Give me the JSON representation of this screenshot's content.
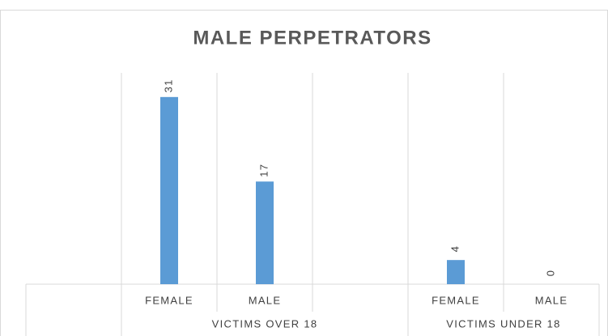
{
  "chart_data": {
    "type": "bar",
    "title": "MALE PERPETRATORS",
    "categories": [
      null,
      "FEMALE",
      "MALE",
      null,
      "FEMALE",
      "MALE"
    ],
    "group_labels": [
      null,
      "VICTIMS OVER 18",
      "VICTIMS OVER 18",
      "VICTIMS OVER 18",
      "VICTIMS UNDER 18",
      "VICTIMS UNDER 18"
    ],
    "values": [
      null,
      31,
      17,
      null,
      4,
      0
    ],
    "color": "#5b9bd5",
    "ylim": [
      0,
      35
    ],
    "grid": true
  }
}
